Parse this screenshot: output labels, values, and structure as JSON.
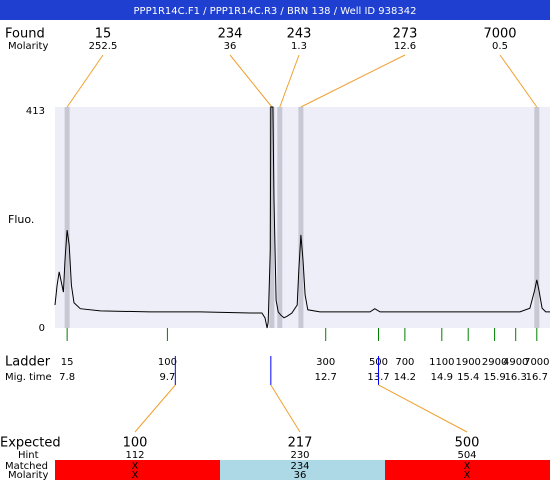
{
  "title": "PPP1R14C.F1 / PPP1R14C.R3 / BRN 138 / Well ID 938342",
  "chart_data": {
    "type": "line",
    "y_label": "Fluo.",
    "color": "#000000",
    "background": "#eeeef8",
    "xlim": [
      7.57,
      16.95
    ],
    "ylim": [
      0,
      413
    ],
    "yticks": [
      0,
      413
    ],
    "x": [
      7.57,
      7.61,
      7.65,
      7.69,
      7.73,
      7.76,
      7.8,
      7.84,
      7.88,
      7.93,
      8.05,
      8.43,
      9.37,
      10.32,
      11.27,
      11.49,
      11.55,
      11.59,
      11.61,
      11.65,
      11.66,
      11.7,
      11.72,
      11.76,
      11.8,
      11.85,
      11.91,
      11.97,
      12.06,
      12.16,
      12.19,
      12.23,
      12.27,
      12.31,
      12.36,
      12.59,
      13.54,
      13.63,
      13.73,
      15.05,
      16.38,
      16.57,
      16.66,
      16.7,
      16.74,
      16.8,
      16.87,
      16.95
    ],
    "values": [
      43,
      80,
      105,
      86,
      67,
      127,
      183,
      155,
      80,
      47,
      36,
      32,
      30,
      30,
      28,
      28,
      19,
      0,
      11,
      146,
      413,
      413,
      239,
      52,
      30,
      24,
      19,
      22,
      28,
      43,
      108,
      174,
      127,
      62,
      34,
      30,
      30,
      36,
      30,
      30,
      30,
      37,
      71,
      90,
      71,
      37,
      30,
      30
    ]
  },
  "found": {
    "label": "Found",
    "sublabel": "Molarity",
    "band_color": "#c8c8d4",
    "line_color": "#f0a030",
    "peaks": [
      {
        "size": 15,
        "molarity": 252.5,
        "time": 7.8
      },
      {
        "size": 234,
        "molarity": 36,
        "time": 11.68
      },
      {
        "size": 243,
        "molarity": 1.3,
        "time": 11.83
      },
      {
        "size": 273,
        "molarity": 12.6,
        "time": 12.23
      },
      {
        "size": 7000,
        "molarity": 0.5,
        "time": 16.7
      }
    ]
  },
  "ladder": {
    "label": "Ladder",
    "sublabel": "Mig. time",
    "color": "#008000",
    "items": [
      {
        "size": 15,
        "time": 7.8
      },
      {
        "size": 100,
        "time": 9.7
      },
      {
        "size": 300,
        "time": 12.7
      },
      {
        "size": 500,
        "time": 13.7
      },
      {
        "size": 700,
        "time": 14.2
      },
      {
        "size": 1100,
        "time": 14.9
      },
      {
        "size": 1900,
        "time": 15.4
      },
      {
        "size": 2900,
        "time": 15.9
      },
      {
        "size": 4900,
        "time": 16.3
      },
      {
        "size": 7000,
        "time": 16.7
      }
    ]
  },
  "expected": {
    "label": "Expected",
    "hint_label": "Hint",
    "matched_label": "Matched",
    "molarity_label": "Molarity",
    "marker_color": "#0000ff",
    "items": [
      {
        "size": 100,
        "hint": 112,
        "matched": "X",
        "molarity": "X",
        "time": 9.85,
        "color": "#ff0000"
      },
      {
        "size": 217,
        "hint": 230,
        "matched": 234,
        "molarity": 36,
        "time": 11.66,
        "color": "#add8e6"
      },
      {
        "size": 500,
        "hint": 504,
        "matched": "X",
        "molarity": "X",
        "time": 13.7,
        "color": "#ff0000"
      }
    ]
  }
}
